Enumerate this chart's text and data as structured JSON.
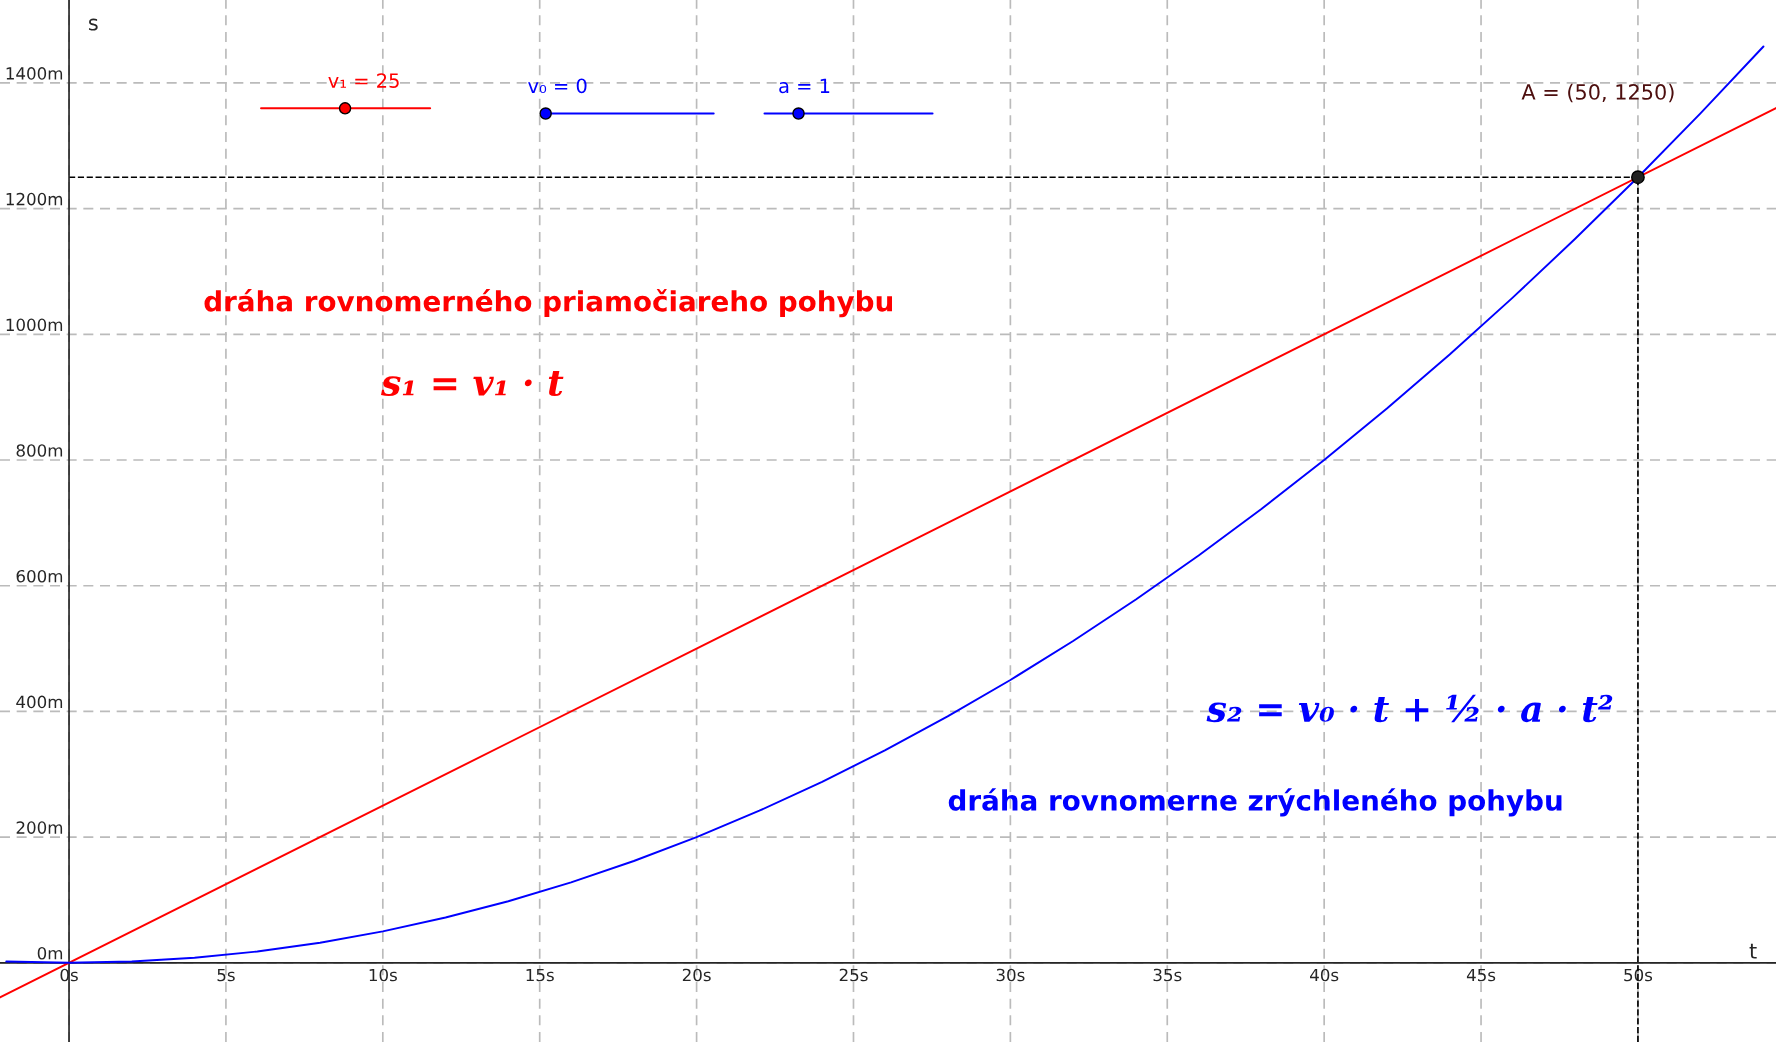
{
  "chart_data": {
    "type": "line",
    "xlabel": "t",
    "ylabel": "s",
    "xlim": [
      -2.2,
      54.4
    ],
    "ylim": [
      -126,
      1532
    ],
    "xticks": [
      {
        "value": 0,
        "label": "0s"
      },
      {
        "value": 5,
        "label": "5s"
      },
      {
        "value": 10,
        "label": "10s"
      },
      {
        "value": 15,
        "label": "15s"
      },
      {
        "value": 20,
        "label": "20s"
      },
      {
        "value": 25,
        "label": "25s"
      },
      {
        "value": 30,
        "label": "30s"
      },
      {
        "value": 35,
        "label": "35s"
      },
      {
        "value": 40,
        "label": "40s"
      },
      {
        "value": 45,
        "label": "45s"
      },
      {
        "value": 50,
        "label": "50s"
      }
    ],
    "yticks": [
      {
        "value": 0,
        "label": "0m"
      },
      {
        "value": 200,
        "label": "200m"
      },
      {
        "value": 400,
        "label": "400m"
      },
      {
        "value": 600,
        "label": "600m"
      },
      {
        "value": 800,
        "label": "800m"
      },
      {
        "value": 1000,
        "label": "1000m"
      },
      {
        "value": 1200,
        "label": "1200m"
      },
      {
        "value": 1400,
        "label": "1400m"
      }
    ],
    "grid": true,
    "series": [
      {
        "color": "#ff0000",
        "x": [
          -2.2,
          54.4
        ],
        "values": [
          -55,
          1360
        ]
      },
      {
        "color": "#0000ff",
        "x": [
          -2,
          0,
          2,
          4,
          6,
          8,
          10,
          12,
          14,
          16,
          18,
          20,
          22,
          24,
          26,
          28,
          30,
          32,
          34,
          36,
          38,
          40,
          42,
          44,
          46,
          48,
          50,
          52,
          54
        ],
        "values": [
          2,
          0,
          2,
          8,
          18,
          32,
          50,
          72,
          98,
          128,
          162,
          200,
          242,
          288,
          338,
          392,
          450,
          512,
          578,
          648,
          722,
          800,
          882,
          968,
          1058,
          1152,
          1250,
          1352,
          1458
        ]
      },
      {
        "type": "scatter",
        "color": "#222222",
        "marker": "circle",
        "x": [
          50
        ],
        "values": [
          1250
        ]
      }
    ],
    "ref_lines": [
      {
        "axis": "y",
        "value": 1250,
        "color": "#000000",
        "line_style": "dashed"
      },
      {
        "axis": "x",
        "value": 50,
        "color": "#000000",
        "line_style": "dashed"
      }
    ],
    "annotations": [
      "v₁ = 25",
      "v₀ = 0",
      "a = 1",
      "A = (50, 1250)",
      "dráha rovnomerného priamočiareho pohybu",
      "s₁ = v₁ · t",
      "s₂ = v₀ · t + ½ · a · t²",
      "dráha rovnomerne zrýchleného pohybu"
    ]
  }
}
